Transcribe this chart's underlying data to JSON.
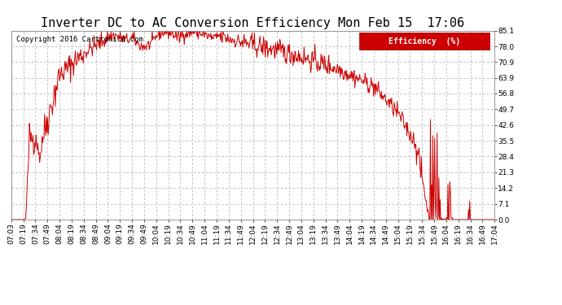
{
  "title": "Inverter DC to AC Conversion Efficiency Mon Feb 15  17:06",
  "copyright": "Copyright 2016 Cartronics.com",
  "legend_label": "Efficiency  (%)",
  "legend_bg": "#cc0000",
  "legend_fg": "#ffffff",
  "line_color": "#cc0000",
  "bg_color": "#ffffff",
  "plot_bg": "#ffffff",
  "grid_color": "#aaaaaa",
  "ylim": [
    0,
    85.1
  ],
  "yticks": [
    0.0,
    7.1,
    14.2,
    21.3,
    28.4,
    35.5,
    42.6,
    49.7,
    56.8,
    63.9,
    70.9,
    78.0,
    85.1
  ],
  "xtick_labels": [
    "07:03",
    "07:19",
    "07:34",
    "07:49",
    "08:04",
    "08:19",
    "08:34",
    "08:49",
    "09:04",
    "09:19",
    "09:34",
    "09:49",
    "10:04",
    "10:19",
    "10:34",
    "10:49",
    "11:04",
    "11:19",
    "11:34",
    "11:49",
    "12:04",
    "12:19",
    "12:34",
    "12:49",
    "13:04",
    "13:19",
    "13:34",
    "13:49",
    "14:04",
    "14:19",
    "14:34",
    "14:49",
    "15:04",
    "15:19",
    "15:34",
    "15:49",
    "16:04",
    "16:19",
    "16:34",
    "16:49",
    "17:04"
  ],
  "title_fontsize": 11,
  "tick_fontsize": 6.5,
  "copyright_fontsize": 6.5
}
